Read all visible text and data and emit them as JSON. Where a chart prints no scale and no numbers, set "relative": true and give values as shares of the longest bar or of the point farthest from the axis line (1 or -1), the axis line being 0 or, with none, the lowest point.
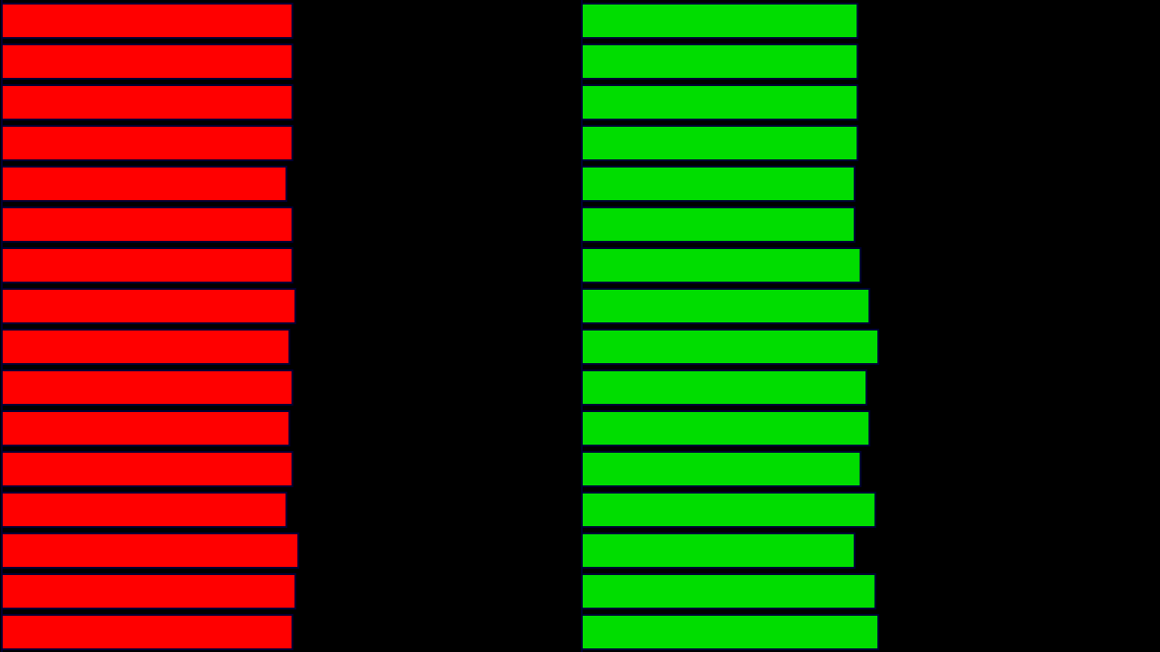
{
  "chart_data": [
    {
      "type": "bar",
      "orientation": "horizontal",
      "relative": true,
      "categories": [
        null,
        null,
        null,
        null,
        null,
        null,
        null,
        null,
        null,
        null,
        null,
        null,
        null,
        null,
        null,
        null
      ],
      "color": "#ff0000",
      "values": [
        0.98,
        0.98,
        0.98,
        0.98,
        0.96,
        0.98,
        0.98,
        0.99,
        0.97,
        0.98,
        0.97,
        0.98,
        0.96,
        1,
        0.99,
        0.98
      ]
    },
    {
      "type": "bar",
      "orientation": "horizontal",
      "relative": true,
      "categories": [
        null,
        null,
        null,
        null,
        null,
        null,
        null,
        null,
        null,
        null,
        null,
        null,
        null,
        null,
        null,
        null
      ],
      "color": "#00dd00",
      "values": [
        0.93,
        0.93,
        0.93,
        0.93,
        0.92,
        0.92,
        0.94,
        0.97,
        1,
        0.96,
        0.97,
        0.94,
        0.99,
        0.92,
        0.99,
        1
      ]
    }
  ]
}
